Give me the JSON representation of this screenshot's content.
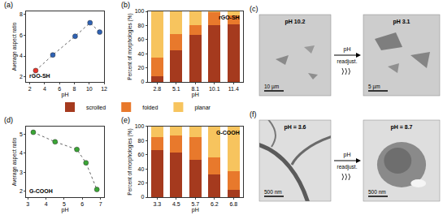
{
  "chart_data": [
    {
      "type": "scatter",
      "panel_label": "(a)",
      "annotations": [
        "rGO-SH"
      ],
      "x_label": "pH",
      "y_label": "Average aspect ratio",
      "x": [
        2.8,
        5.1,
        8.1,
        10.1,
        11.4
      ],
      "values": [
        2.6,
        4.1,
        5.9,
        7.2,
        6.3
      ],
      "colors": [
        "#e8332a",
        "#2e62b5",
        "#2e62b5",
        "#2e62b5",
        "#2e62b5"
      ],
      "marker": "circle",
      "line_style": "dotted",
      "xlim": [
        1.5,
        12
      ],
      "xticks": [
        2,
        4,
        6,
        8,
        10,
        12
      ],
      "ylim": [
        1.5,
        8.3
      ],
      "yticks": [
        2,
        4,
        6,
        8
      ],
      "grid": false
    },
    {
      "type": "bar",
      "stacked": true,
      "panel_label": "(b)",
      "annotations": [
        "rGO-SH"
      ],
      "x_label": "pH",
      "y_label": "Percent of morphologies (%)",
      "categories": [
        "2.8",
        "5.1",
        "8.1",
        "10.1",
        "11.4"
      ],
      "series": [
        {
          "name": "scrolled",
          "color": "#a53a1e",
          "values": [
            8,
            45,
            67,
            80,
            82
          ]
        },
        {
          "name": "folded",
          "color": "#e8792c",
          "values": [
            27,
            23,
            13,
            19,
            12
          ]
        },
        {
          "name": "planar",
          "color": "#f7c45e",
          "values": [
            65,
            32,
            20,
            1,
            6
          ]
        }
      ],
      "ylim": [
        0,
        100
      ],
      "yticks": [
        0,
        20,
        40,
        60,
        80,
        100
      ],
      "legend": "bottom",
      "grid": false
    },
    {
      "type": "scatter",
      "panel_label": "(d)",
      "annotations": [
        "G-COOH"
      ],
      "x_label": "pH",
      "y_label": "Average aspect ratio",
      "x": [
        3.3,
        4.5,
        5.7,
        6.2,
        6.8
      ],
      "values": [
        5.1,
        4.6,
        4.2,
        3.5,
        2.1
      ],
      "color": "#3aa635",
      "marker": "circle",
      "line_style": "dotted",
      "xlim": [
        2.9,
        7.2
      ],
      "xticks": [
        3,
        4,
        5,
        6,
        7
      ],
      "ylim": [
        1.7,
        5.4
      ],
      "yticks": [
        2,
        3,
        4,
        5
      ],
      "grid": false
    },
    {
      "type": "bar",
      "stacked": true,
      "panel_label": "(e)",
      "annotations": [
        "G-COOH"
      ],
      "x_label": "pH",
      "y_label": "Percent of morphologies (%)",
      "categories": [
        "3.3",
        "4.5",
        "5.7",
        "6.2",
        "6.8"
      ],
      "series": [
        {
          "name": "scrolled",
          "color": "#a53a1e",
          "values": [
            67,
            63,
            53,
            32,
            10
          ]
        },
        {
          "name": "folded",
          "color": "#e8792c",
          "values": [
            18,
            24,
            32,
            24,
            27
          ]
        },
        {
          "name": "planar",
          "color": "#f7c45e",
          "values": [
            15,
            13,
            15,
            44,
            63
          ]
        }
      ],
      "ylim": [
        0,
        100
      ],
      "yticks": [
        0,
        20,
        40,
        60,
        80,
        100
      ],
      "grid": false
    }
  ],
  "image_panels": [
    {
      "panel_label": "(c)",
      "before": {
        "label": "pH 10.2",
        "scale_bar": "10 µm"
      },
      "after": {
        "label": "pH 3.1",
        "scale_bar": "5 µm"
      },
      "arrow_above": "pH",
      "arrow_below": "readjust."
    },
    {
      "panel_label": "(f)",
      "before": {
        "label": "pH = 3.6",
        "scale_bar": "500 nm"
      },
      "after": {
        "label": "pH = 8.7",
        "scale_bar": "500 nm"
      },
      "arrow_above": "pH",
      "arrow_below": "readjust."
    }
  ]
}
